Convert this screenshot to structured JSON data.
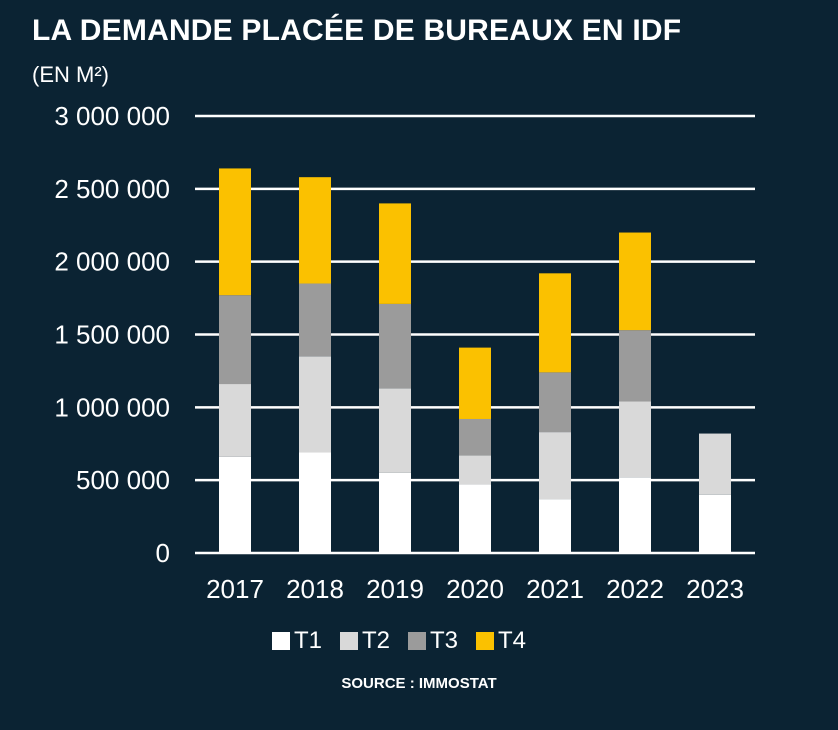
{
  "title": "LA DEMANDE PLACÉE DE BUREAUX EN IDF",
  "subtitle": "(EN M²)",
  "source": "SOURCE : IMMOSTAT",
  "colors": {
    "background": "#0b2333",
    "T1": "#ffffff",
    "T2": "#d9d9d9",
    "T3": "#9b9b9b",
    "T4": "#fbc100",
    "grid": "#ffffff"
  },
  "chart_data": {
    "type": "bar",
    "stacked": true,
    "categories": [
      "2017",
      "2018",
      "2019",
      "2020",
      "2021",
      "2022",
      "2023"
    ],
    "series": [
      {
        "name": "T1",
        "values": [
          660000,
          690000,
          550000,
          470000,
          370000,
          520000,
          400000
        ]
      },
      {
        "name": "T2",
        "values": [
          500000,
          660000,
          580000,
          200000,
          460000,
          520000,
          420000
        ]
      },
      {
        "name": "T3",
        "values": [
          610000,
          500000,
          580000,
          250000,
          410000,
          490000,
          0
        ]
      },
      {
        "name": "T4",
        "values": [
          870000,
          730000,
          690000,
          490000,
          680000,
          670000,
          0
        ]
      }
    ],
    "ylim": [
      0,
      3000000
    ],
    "yticks": [
      0,
      500000,
      1000000,
      1500000,
      2000000,
      2500000,
      3000000
    ],
    "ytick_labels": [
      "0",
      "500 000",
      "1 000 000",
      "1 500 000",
      "2 000 000",
      "2 500 000",
      "3 000 000"
    ],
    "grid": true,
    "legend_position": "bottom"
  }
}
